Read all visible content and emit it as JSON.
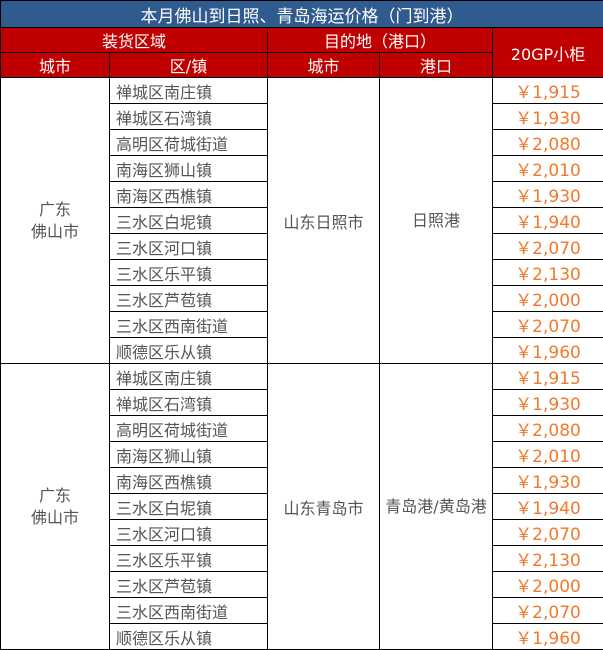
{
  "title": "本月佛山到日照、青岛海运价格（门到港）",
  "headers": {
    "loading_area": "装货区域",
    "destination": "目的地（港口）",
    "price": "20GP小柜",
    "city": "城市",
    "district": "区/镇",
    "dest_city": "城市",
    "port": "港口"
  },
  "groups": [
    {
      "origin_city": "广东\n佛山市",
      "dest_city": "山东日照市",
      "port": "日照港",
      "rows": [
        {
          "district": "禅城区南庄镇",
          "price": "￥1,915"
        },
        {
          "district": "禅城区石湾镇",
          "price": "￥1,930"
        },
        {
          "district": "高明区荷城街道",
          "price": "￥2,080"
        },
        {
          "district": "南海区狮山镇",
          "price": "￥2,010"
        },
        {
          "district": "南海区西樵镇",
          "price": "￥1,930"
        },
        {
          "district": "三水区白坭镇",
          "price": "￥1,940"
        },
        {
          "district": "三水区河口镇",
          "price": "￥2,070"
        },
        {
          "district": "三水区乐平镇",
          "price": "￥2,130"
        },
        {
          "district": "三水区芦苞镇",
          "price": "￥2,000"
        },
        {
          "district": "三水区西南街道",
          "price": "￥2,070"
        },
        {
          "district": "顺德区乐从镇",
          "price": "￥1,960"
        }
      ]
    },
    {
      "origin_city": "广东\n佛山市",
      "dest_city": "山东青岛市",
      "port": "青岛港/黄岛港",
      "rows": [
        {
          "district": "禅城区南庄镇",
          "price": "￥1,915"
        },
        {
          "district": "禅城区石湾镇",
          "price": "￥1,930"
        },
        {
          "district": "高明区荷城街道",
          "price": "￥2,080"
        },
        {
          "district": "南海区狮山镇",
          "price": "￥2,010"
        },
        {
          "district": "南海区西樵镇",
          "price": "￥1,930"
        },
        {
          "district": "三水区白坭镇",
          "price": "￥1,940"
        },
        {
          "district": "三水区河口镇",
          "price": "￥2,070"
        },
        {
          "district": "三水区乐平镇",
          "price": "￥2,130"
        },
        {
          "district": "三水区芦苞镇",
          "price": "￥2,000"
        },
        {
          "district": "三水区西南街道",
          "price": "￥2,070"
        },
        {
          "district": "顺德区乐从镇",
          "price": "￥1,960"
        }
      ]
    }
  ],
  "colors": {
    "title_bg": "#2F5B8F",
    "header_bg": "#C00000",
    "price": "#F4782A",
    "text": "#555555"
  }
}
